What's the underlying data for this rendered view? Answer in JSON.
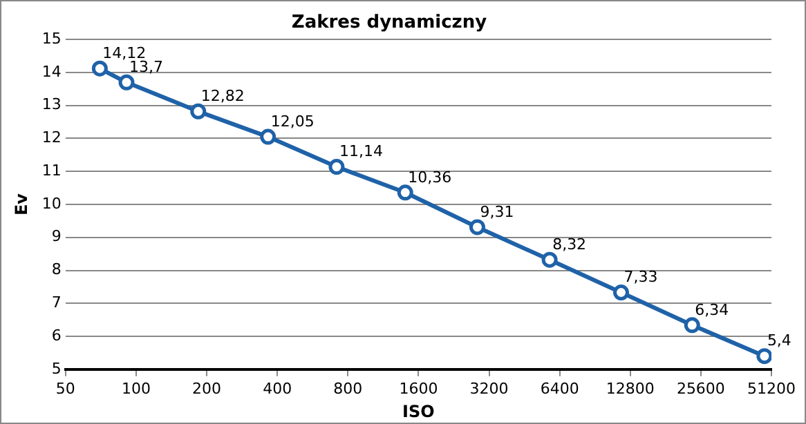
{
  "chart_data": {
    "type": "line",
    "title": "Zakres dynamiczny",
    "xlabel": "ISO",
    "ylabel": "Ev",
    "log": "x",
    "x": [
      70,
      91,
      184,
      365,
      716,
      1405,
      2850,
      5800,
      11700,
      23500,
      47800
    ],
    "series": [
      {
        "color": "#1f62a8",
        "values": [
          14.12,
          13.7,
          12.82,
          12.05,
          11.14,
          10.36,
          9.31,
          8.32,
          7.33,
          6.34,
          5.4
        ],
        "value_labels": [
          "14,12",
          "13,7",
          "12,82",
          "12,05",
          "11,14",
          "10,36",
          "9,31",
          "8,32",
          "7,33",
          "6,34",
          "5,4"
        ]
      }
    ],
    "xlim": [
      50,
      51200
    ],
    "xticks": [
      50,
      100,
      200,
      400,
      800,
      1600,
      3200,
      6400,
      12800,
      25600,
      51200
    ],
    "ylim": [
      5,
      15
    ],
    "yticks": [
      5,
      6,
      7,
      8,
      9,
      10,
      11,
      12,
      13,
      14,
      15
    ],
    "grid": "y",
    "legend": false,
    "marker": "circle",
    "line_style": "solid"
  }
}
